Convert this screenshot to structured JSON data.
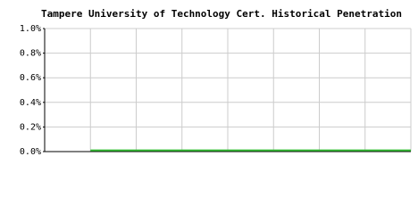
{
  "chart_data": {
    "type": "line",
    "title": "Tampere University of Technology Cert. Historical Penetration",
    "categories": [
      null,
      null,
      null,
      null,
      null,
      null,
      null,
      null,
      null
    ],
    "series": [
      {
        "color": "#33bb33",
        "values": [
          null,
          0.01,
          0.01,
          0.01,
          0.01,
          0.01,
          0.01,
          0.01,
          0.01
        ]
      }
    ],
    "ylim": [
      0,
      1.0
    ],
    "yticks": [
      {
        "value": 0,
        "label": "0.0%"
      },
      {
        "value": 0.2,
        "label": "0.2%"
      },
      {
        "value": 0.4,
        "label": "0.4%"
      },
      {
        "value": 0.6,
        "label": "0.6%"
      },
      {
        "value": 0.8,
        "label": "0.8%"
      },
      {
        "value": 1.0,
        "label": "1.0%"
      }
    ],
    "grid": true
  }
}
